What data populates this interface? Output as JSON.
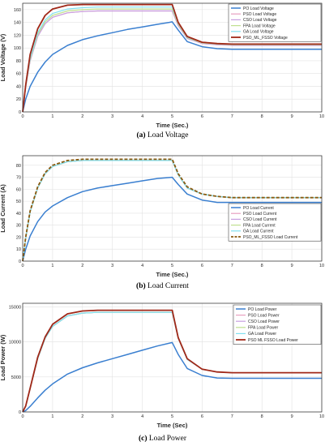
{
  "figure": {
    "captions": [
      {
        "letter": "(a)",
        "text": "Load Voltage"
      },
      {
        "letter": "(b)",
        "text": "Load Current"
      },
      {
        "letter": "(c)",
        "text": "Load Power"
      }
    ]
  },
  "colors": {
    "PO": "#3a7fd0",
    "PSO": "#e8a0c0",
    "CSO": "#c8a0e0",
    "FPA": "#c0e090",
    "GA": "#80e0f0",
    "PSO_ML_FSSO": "#a02818",
    "grid": "#e2e2e2"
  },
  "chart_data": [
    {
      "type": "line",
      "title": "",
      "xlabel": "Time (Sec.)",
      "ylabel": "Load Voltage (V)",
      "xlim": [
        0,
        10
      ],
      "ylim": [
        0,
        170
      ],
      "xticks": [
        0,
        1,
        2,
        3,
        4,
        5,
        6,
        7,
        8,
        9,
        10
      ],
      "yticks": [
        0,
        20,
        40,
        60,
        80,
        100,
        120,
        140,
        160
      ],
      "grid": true,
      "legend_position": "top-right",
      "series": [
        {
          "name": "PO Load Voltage",
          "key": "PO",
          "x": [
            0,
            0.1,
            0.25,
            0.5,
            0.75,
            1,
            1.5,
            2,
            2.5,
            3,
            3.5,
            4,
            4.5,
            4.9,
            5,
            5.2,
            5.5,
            6,
            6.5,
            7,
            8,
            9,
            10
          ],
          "y": [
            0,
            20,
            40,
            62,
            78,
            90,
            104,
            113,
            119,
            124,
            129,
            133,
            137,
            140,
            141,
            128,
            110,
            102,
            99,
            98,
            98,
            98,
            98
          ]
        },
        {
          "name": "PSO Load Voltage",
          "key": "PSO",
          "x": [
            0,
            0.1,
            0.25,
            0.5,
            0.75,
            1,
            1.5,
            2,
            2.5,
            3,
            4,
            5,
            5.2,
            5.5,
            6,
            6.5,
            7,
            8,
            9,
            10
          ],
          "y": [
            0,
            38,
            80,
            118,
            138,
            148,
            155,
            157,
            158,
            158,
            158,
            158,
            135,
            115,
            107,
            105,
            104,
            104,
            104,
            104
          ]
        },
        {
          "name": "CSO Load Voltage",
          "key": "CSO",
          "x": [
            0,
            0.1,
            0.25,
            0.5,
            0.75,
            1,
            1.5,
            2,
            2.5,
            3,
            4,
            5,
            5.2,
            5.5,
            6,
            6.5,
            7,
            8,
            9,
            10
          ],
          "y": [
            0,
            38,
            80,
            118,
            138,
            148,
            155,
            157,
            158,
            158,
            158,
            158,
            135,
            115,
            107,
            105,
            104,
            104,
            104,
            104
          ]
        },
        {
          "name": "FPA Load Voltage",
          "key": "FPA",
          "x": [
            0,
            0.1,
            0.25,
            0.5,
            0.75,
            1,
            1.5,
            2,
            2.5,
            3,
            4,
            5,
            5.2,
            5.5,
            6,
            6.5,
            7,
            8,
            9,
            10
          ],
          "y": [
            0,
            39,
            82,
            121,
            141,
            151,
            158,
            160,
            161,
            161,
            161,
            161,
            137,
            116,
            108,
            106,
            105,
            105,
            105,
            105
          ]
        },
        {
          "name": "GA Load Voltage",
          "key": "GA",
          "x": [
            0,
            0.1,
            0.25,
            0.5,
            0.75,
            1,
            1.5,
            2,
            2.5,
            3,
            4,
            5,
            5.2,
            5.5,
            6,
            6.5,
            7,
            8,
            9,
            10
          ],
          "y": [
            0,
            40,
            84,
            124,
            144,
            154,
            161,
            163,
            164,
            164,
            164,
            164,
            139,
            117,
            109,
            107,
            106,
            106,
            106,
            106
          ]
        },
        {
          "name": "PSO_ML_FSSO Voltage",
          "key": "PSO_ML_FSSO",
          "x": [
            0,
            0.1,
            0.25,
            0.5,
            0.75,
            1,
            1.5,
            2,
            2.5,
            3,
            4,
            5,
            5.2,
            5.5,
            6,
            6.5,
            7,
            8,
            9,
            10
          ],
          "y": [
            0,
            42,
            90,
            130,
            151,
            161,
            167,
            168,
            168,
            168,
            168,
            168,
            140,
            118,
            109,
            107,
            106,
            106,
            106,
            106
          ]
        }
      ]
    },
    {
      "type": "line",
      "title": "",
      "xlabel": "Time (Sec.)",
      "ylabel": "Load Current (A)",
      "xlim": [
        0,
        10
      ],
      "ylim": [
        0,
        88
      ],
      "xticks": [
        0,
        1,
        2,
        3,
        4,
        5,
        6,
        7,
        8,
        9,
        10
      ],
      "yticks": [
        0,
        10,
        20,
        30,
        40,
        50,
        60,
        70,
        80
      ],
      "grid": true,
      "legend_position": "right",
      "series": [
        {
          "name": "PO Load Current",
          "key": "PO",
          "x": [
            0,
            0.1,
            0.25,
            0.5,
            0.75,
            1,
            1.5,
            2,
            2.5,
            3,
            3.5,
            4,
            4.5,
            5,
            5.2,
            5.5,
            6,
            6.5,
            7,
            8,
            9,
            10
          ],
          "y": [
            0,
            10,
            21,
            33,
            41,
            46,
            53,
            58,
            61,
            63,
            65,
            67,
            69,
            70,
            64,
            56,
            51,
            49,
            49,
            49,
            49,
            49
          ]
        },
        {
          "name": "PSO Load Current",
          "key": "PSO",
          "x": [
            0,
            0.1,
            0.25,
            0.5,
            0.75,
            1,
            1.5,
            2,
            2.5,
            3,
            4,
            5,
            5.2,
            5.5,
            6,
            6.5,
            7,
            8,
            9,
            10
          ],
          "y": [
            0,
            19,
            41,
            61,
            73,
            79,
            83,
            84,
            84,
            84,
            84,
            84,
            72,
            61,
            56,
            54,
            53,
            53,
            53,
            53
          ]
        },
        {
          "name": "CSO Load Current",
          "key": "CSO",
          "x": [
            0,
            0.1,
            0.25,
            0.5,
            0.75,
            1,
            1.5,
            2,
            2.5,
            3,
            4,
            5,
            5.2,
            5.5,
            6,
            6.5,
            7,
            8,
            9,
            10
          ],
          "y": [
            0,
            19,
            41,
            61,
            73,
            79,
            83,
            84,
            84,
            84,
            84,
            84,
            72,
            61,
            56,
            54,
            53,
            53,
            53,
            53
          ]
        },
        {
          "name": "FPA Load Current",
          "key": "FPA",
          "x": [
            0,
            0.1,
            0.25,
            0.5,
            0.75,
            1,
            1.5,
            2,
            2.5,
            3,
            4,
            5,
            5.2,
            5.5,
            6,
            6.5,
            7,
            8,
            9,
            10
          ],
          "y": [
            0,
            19,
            41,
            61,
            73,
            79,
            83,
            84,
            84,
            84,
            84,
            84,
            72,
            61,
            56,
            54,
            53,
            53,
            53,
            53
          ]
        },
        {
          "name": "GA Load Current",
          "key": "GA",
          "x": [
            0,
            0.1,
            0.25,
            0.5,
            0.75,
            1,
            1.5,
            2,
            2.5,
            3,
            4,
            5,
            5.2,
            5.5,
            6,
            6.5,
            7,
            8,
            9,
            10
          ],
          "y": [
            0,
            19,
            41,
            61,
            73,
            79,
            83,
            84,
            84,
            84,
            84,
            84,
            72,
            61,
            56,
            54,
            53,
            53,
            53,
            53
          ]
        },
        {
          "name": "PSO_ML_FSSO Load Current",
          "key": "PSO_ML_FSSO",
          "dashed": true,
          "x": [
            0,
            0.1,
            0.25,
            0.5,
            0.75,
            1,
            1.5,
            2,
            2.5,
            3,
            4,
            5,
            5.2,
            5.5,
            6,
            6.5,
            7,
            8,
            9,
            10
          ],
          "y": [
            0,
            20,
            42,
            62,
            74,
            80,
            84,
            85,
            85,
            85,
            85,
            85,
            73,
            62,
            56,
            54,
            53,
            53,
            53,
            53
          ]
        }
      ]
    },
    {
      "type": "line",
      "title": "",
      "xlabel": "Time (Sec)",
      "ylabel": "Load Power (W)",
      "xlim": [
        0,
        10
      ],
      "ylim": [
        0,
        15500
      ],
      "xticks": [
        0,
        1,
        2,
        3,
        4,
        5,
        6,
        7,
        8,
        9,
        10
      ],
      "yticks": [
        0,
        5000,
        10000,
        15000
      ],
      "grid": true,
      "legend_position": "top-right",
      "series": [
        {
          "name": "PO Load Power",
          "key": "PO",
          "x": [
            0,
            0.1,
            0.25,
            0.5,
            0.75,
            1,
            1.5,
            2,
            2.5,
            3,
            3.5,
            4,
            4.5,
            5,
            5.2,
            5.5,
            6,
            6.5,
            7,
            8,
            9,
            10
          ],
          "y": [
            0,
            200,
            800,
            2000,
            3100,
            4000,
            5400,
            6300,
            7000,
            7600,
            8200,
            8800,
            9400,
            9900,
            8200,
            6200,
            5200,
            4850,
            4800,
            4800,
            4800,
            4800
          ]
        },
        {
          "name": "PSO Load Power",
          "key": "PSO",
          "x": [
            0,
            0.1,
            0.25,
            0.5,
            0.75,
            1,
            1.5,
            2,
            2.5,
            3,
            4,
            5,
            5.2,
            5.5,
            6,
            6.5,
            7,
            8,
            9,
            10
          ],
          "y": [
            0,
            800,
            3300,
            7600,
            10500,
            12200,
            13700,
            14100,
            14200,
            14200,
            14200,
            14200,
            10500,
            7500,
            6100,
            5700,
            5600,
            5600,
            5600,
            5600
          ]
        },
        {
          "name": "CSO Load Power",
          "key": "CSO",
          "x": [
            0,
            0.1,
            0.25,
            0.5,
            0.75,
            1,
            1.5,
            2,
            2.5,
            3,
            4,
            5,
            5.2,
            5.5,
            6,
            6.5,
            7,
            8,
            9,
            10
          ],
          "y": [
            0,
            800,
            3300,
            7600,
            10500,
            12200,
            13700,
            14100,
            14200,
            14200,
            14200,
            14200,
            10500,
            7500,
            6100,
            5700,
            5600,
            5600,
            5600,
            5600
          ]
        },
        {
          "name": "FPA Load Power",
          "key": "FPA",
          "x": [
            0,
            0.1,
            0.25,
            0.5,
            0.75,
            1,
            1.5,
            2,
            2.5,
            3,
            4,
            5,
            5.2,
            5.5,
            6,
            6.5,
            7,
            8,
            9,
            10
          ],
          "y": [
            0,
            800,
            3300,
            7600,
            10500,
            12200,
            13700,
            14100,
            14200,
            14200,
            14200,
            14200,
            10500,
            7500,
            6100,
            5700,
            5600,
            5600,
            5600,
            5600
          ]
        },
        {
          "name": "GA Load Power",
          "key": "GA",
          "x": [
            0,
            0.1,
            0.25,
            0.5,
            0.75,
            1,
            1.5,
            2,
            2.5,
            3,
            4,
            5,
            5.2,
            5.5,
            6,
            6.5,
            7,
            8,
            9,
            10
          ],
          "y": [
            0,
            800,
            3300,
            7600,
            10500,
            12200,
            13700,
            14100,
            14200,
            14200,
            14200,
            14200,
            10500,
            7500,
            6100,
            5700,
            5600,
            5600,
            5600,
            5600
          ]
        },
        {
          "name": "PSO ML FSSO Load Power",
          "key": "PSO_ML_FSSO",
          "x": [
            0,
            0.1,
            0.25,
            0.5,
            0.75,
            1,
            1.5,
            2,
            2.5,
            3,
            4,
            5,
            5.2,
            5.5,
            6,
            6.5,
            7,
            8,
            9,
            10
          ],
          "y": [
            0,
            850,
            3400,
            7800,
            10700,
            12500,
            14000,
            14400,
            14500,
            14500,
            14500,
            14500,
            10600,
            7600,
            6100,
            5700,
            5600,
            5600,
            5600,
            5600
          ]
        }
      ]
    }
  ]
}
